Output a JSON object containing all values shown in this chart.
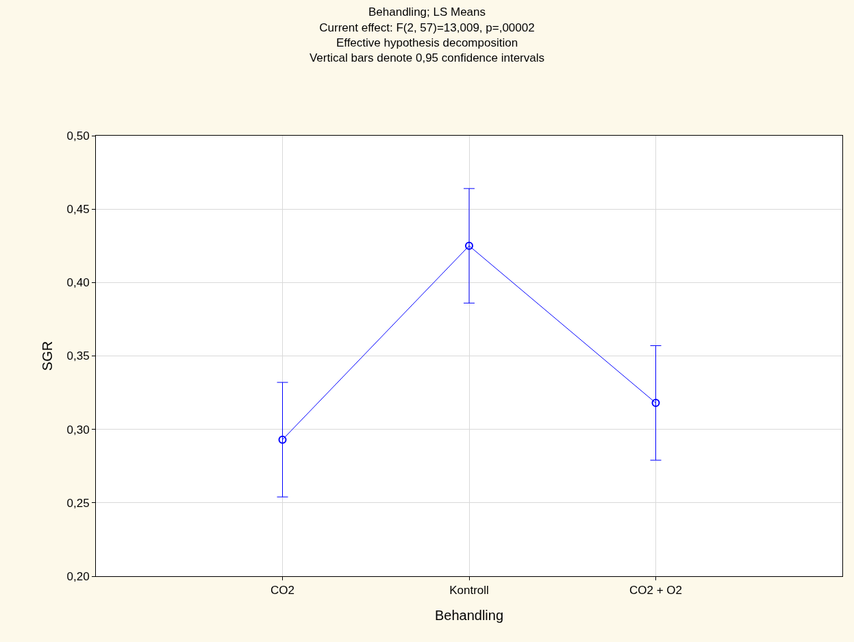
{
  "chart_data": {
    "type": "line",
    "title": "Behandling; LS Means\nCurrent effect: F(2, 57)=13,009, p=,00002\nEffective hypothesis decomposition\nVertical bars denote 0,95 confidence intervals",
    "xlabel": "Behandling",
    "ylabel": "SGR",
    "categories": [
      "CO2",
      "Kontroll",
      "CO2 + O2"
    ],
    "series": [
      {
        "color": "#0000ff",
        "values": [
          0.293,
          0.425,
          0.318
        ],
        "errors": [
          0.039,
          0.039,
          0.039
        ]
      }
    ],
    "ylim": [
      0.2,
      0.5
    ],
    "yticks": [
      {
        "value": 0.2,
        "label": "0,20"
      },
      {
        "value": 0.25,
        "label": "0,25"
      },
      {
        "value": 0.3,
        "label": "0,30"
      },
      {
        "value": 0.35,
        "label": "0,35"
      },
      {
        "value": 0.4,
        "label": "0,40"
      },
      {
        "value": 0.45,
        "label": "0,45"
      },
      {
        "value": 0.5,
        "label": "0,50"
      }
    ],
    "grid": true,
    "marker": "circle",
    "line_style": "solid"
  }
}
